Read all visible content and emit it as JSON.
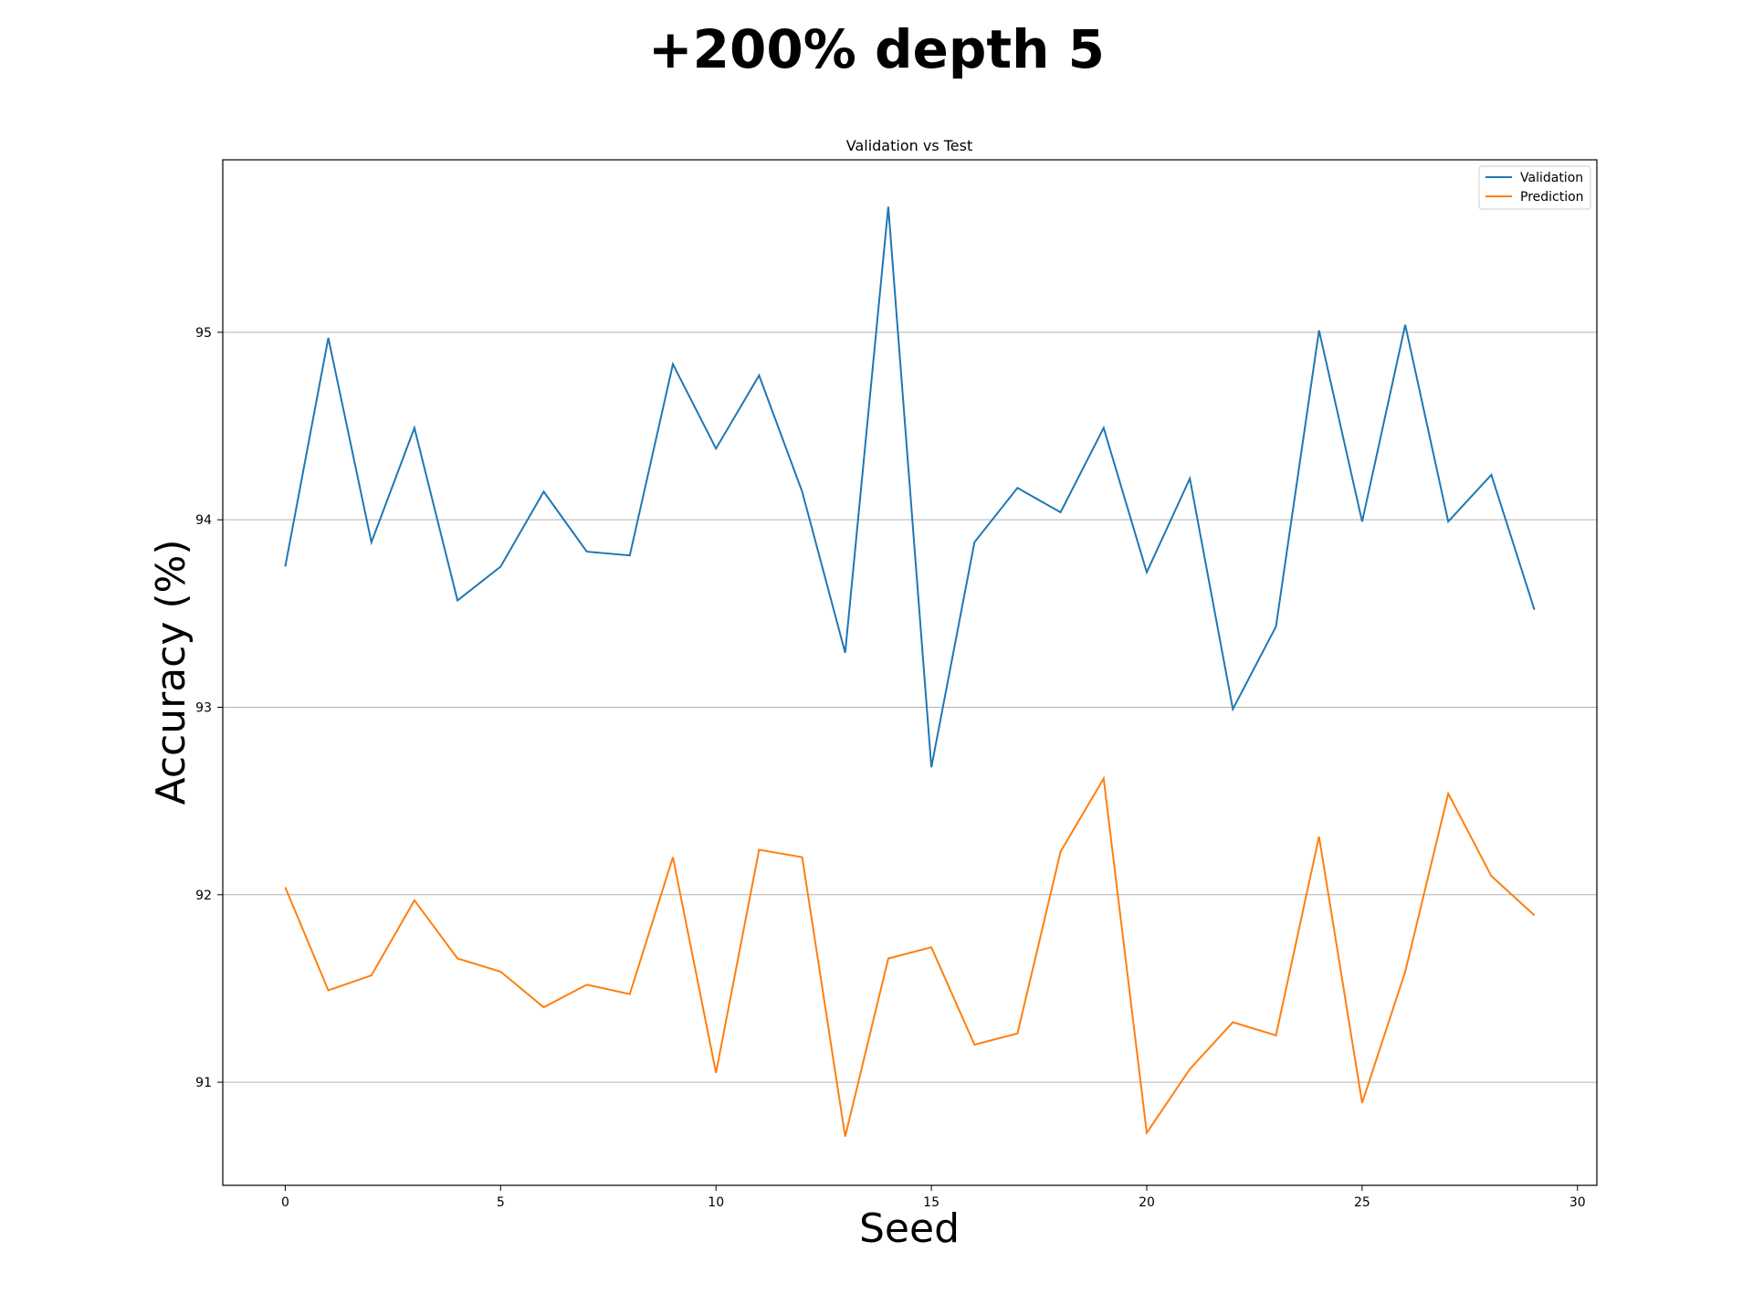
{
  "figure": {
    "suptitle": "+200% depth 5"
  },
  "chart_data": {
    "type": "line",
    "title": "Validation vs Test",
    "xlabel": "Seed",
    "ylabel": "Accuracy (%)",
    "xlim": [
      -1.45,
      30.45
    ],
    "ylim": [
      90.45,
      95.92
    ],
    "xticks": [
      0,
      5,
      10,
      15,
      20,
      25,
      30
    ],
    "yticks": [
      91,
      92,
      93,
      94,
      95
    ],
    "grid": "y-major",
    "legend": "top-right",
    "x": [
      0,
      1,
      2,
      3,
      4,
      5,
      6,
      7,
      8,
      9,
      10,
      11,
      12,
      13,
      14,
      15,
      16,
      17,
      18,
      19,
      20,
      21,
      22,
      23,
      24,
      25,
      26,
      27,
      28,
      29
    ],
    "series": [
      {
        "name": "Validation",
        "color": "#1f77b4",
        "values": [
          93.75,
          94.97,
          93.88,
          94.49,
          93.57,
          93.75,
          94.15,
          93.83,
          93.81,
          94.83,
          94.38,
          94.77,
          94.15,
          93.29,
          95.67,
          92.68,
          93.88,
          94.17,
          94.04,
          94.49,
          93.72,
          94.22,
          92.99,
          93.43,
          95.01,
          93.99,
          95.04,
          93.99,
          94.24,
          93.52
        ]
      },
      {
        "name": "Prediction",
        "color": "#ff7f0e",
        "values": [
          92.04,
          91.49,
          91.57,
          91.97,
          91.66,
          91.59,
          91.4,
          91.52,
          91.47,
          92.2,
          91.05,
          92.24,
          92.2,
          90.71,
          91.66,
          91.72,
          91.2,
          91.26,
          92.23,
          92.62,
          90.73,
          91.07,
          91.32,
          91.25,
          92.31,
          90.89,
          91.59,
          92.54,
          92.1,
          91.89
        ]
      }
    ]
  }
}
